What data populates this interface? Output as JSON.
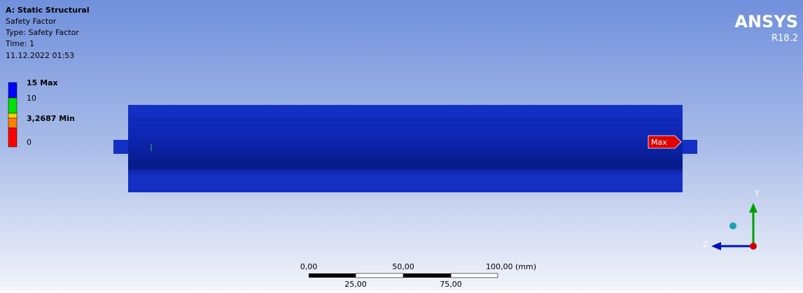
{
  "header": {
    "title": "A: Static Structural",
    "lines": [
      "Safety Factor",
      "Type: Safety Factor",
      "Time: 1",
      "11.12.2022 01:53"
    ]
  },
  "legend": {
    "entries": [
      "15 Max",
      "10",
      "3,2687 Min",
      "0"
    ]
  },
  "logo": {
    "name": "ANSYS",
    "version": "R18.2"
  },
  "probe": {
    "label": "Max"
  },
  "scale_bar": {
    "top": [
      "0,00",
      "50,00",
      "100,00 (mm)"
    ],
    "bottom": [
      "25,00",
      "75,00"
    ]
  },
  "triad": {
    "y": "Y",
    "z": "Z"
  }
}
